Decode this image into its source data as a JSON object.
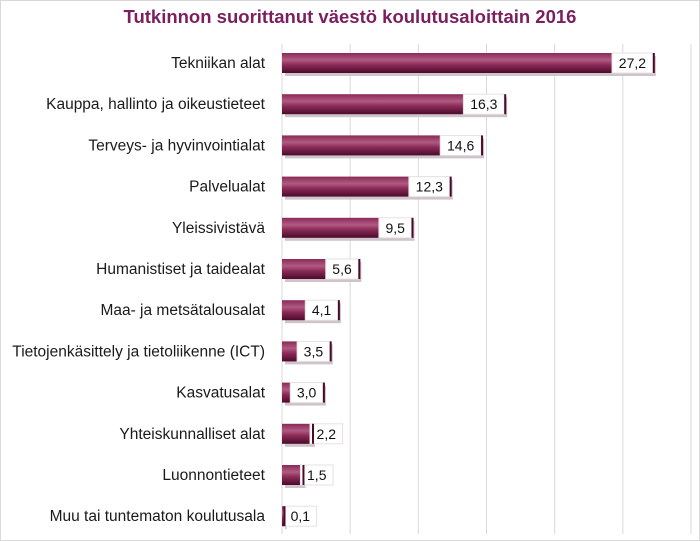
{
  "chart_data": {
    "type": "bar",
    "orientation": "horizontal",
    "title": "Tutkinnon suorittanut väestö koulutusaloittain 2016",
    "xlabel": "",
    "ylabel": "",
    "xlim": [
      0,
      30
    ],
    "grid": true,
    "legend": "none",
    "colors": {
      "bar_dark": "#4a0a2c",
      "bar_mid": "#8a2a56",
      "bar_light": "#b05a82",
      "shadow": "#cfc4c9",
      "title": "#7b1f5e",
      "grid": "#d9d9d9"
    },
    "categories": [
      "Tekniikan alat",
      "Kauppa, hallinto ja oikeustieteet",
      "Terveys- ja hyvinvointialat",
      "Palvelualat",
      "Yleissivistävä",
      "Humanistiset ja taidealat",
      "Maa- ja metsätalousalat",
      "Tietojenkäsittely ja tietoliikenne (ICT)",
      "Kasvatusalat",
      "Yhteiskunnalliset alat",
      "Luonnontieteet",
      "Muu tai tuntematon koulutusala"
    ],
    "values": [
      27.2,
      16.3,
      14.6,
      12.3,
      9.5,
      5.6,
      4.1,
      3.5,
      3.0,
      2.2,
      1.5,
      0.1
    ],
    "value_labels": [
      "27,2",
      "16,3",
      "14,6",
      "12,3",
      "9,5",
      "5,6",
      "4,1",
      "3,5",
      "3,0",
      "2,2",
      "1,5",
      "0,1"
    ]
  }
}
